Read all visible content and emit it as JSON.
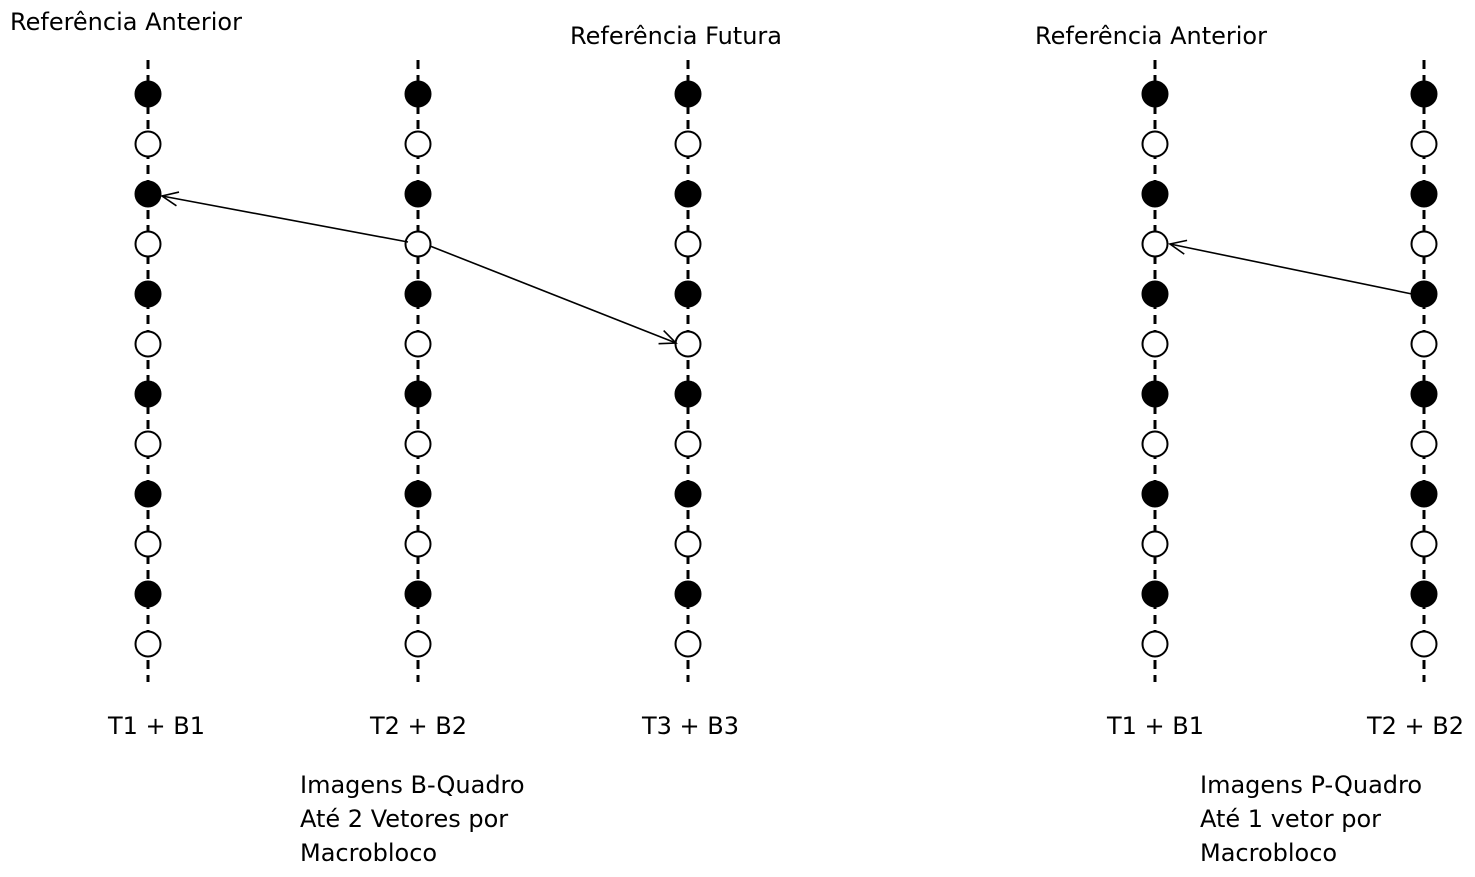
{
  "b_frame": {
    "ref_prev_label": "Referência Anterior",
    "ref_next_label": "Referência Futura",
    "col1_label": "T1 + B1",
    "col2_label": "T2 + B2",
    "col3_label": "T3 + B3",
    "caption": [
      "Imagens B-Quadro",
      "Até 2 Vetores por",
      "Macrobloco"
    ]
  },
  "p_frame": {
    "ref_prev_label": "Referência Anterior",
    "col1_label": "T1 + B1",
    "col2_label": "T2 + B2",
    "caption": [
      "Imagens P-Quadro",
      "Até 1 vetor  por",
      "Macrobloco"
    ]
  },
  "pixel_pattern": [
    "filled",
    "open",
    "filled",
    "open",
    "filled",
    "open",
    "filled",
    "open",
    "filled",
    "open",
    "filled",
    "open"
  ],
  "colors": {
    "stroke": "#000000",
    "filled_dot": "#000000",
    "open_dot": "#ffffff"
  }
}
